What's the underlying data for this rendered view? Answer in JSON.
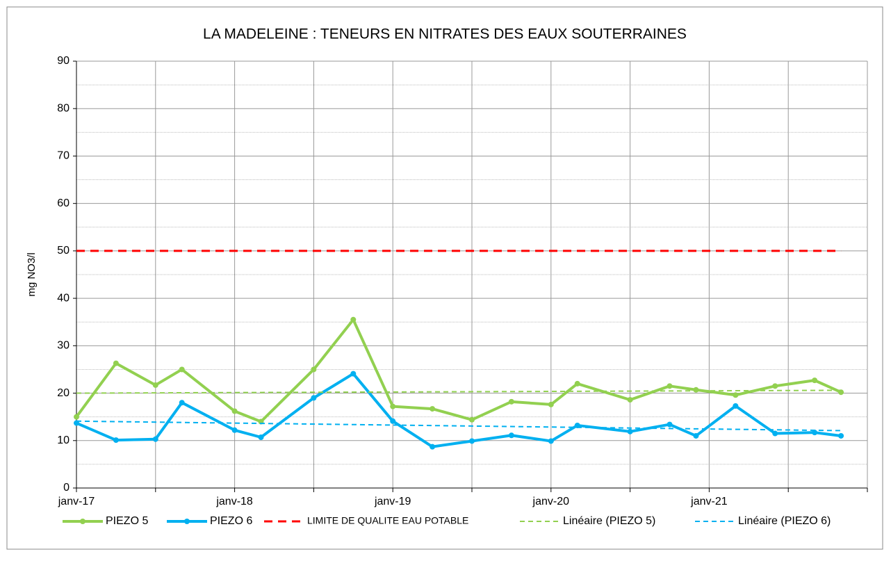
{
  "chart_data": {
    "type": "line",
    "title": "LA MADELEINE : TENEURS EN NITRATES DES EAUX SOUTERRAINES",
    "y_label": "mg NO3/l",
    "x": [
      "2017-01",
      "2017-04",
      "2017-07",
      "2017-09",
      "2018-01",
      "2018-03",
      "2018-07",
      "2018-10",
      "2019-01",
      "2019-04",
      "2019-07",
      "2019-10",
      "2020-01",
      "2020-03",
      "2020-07",
      "2020-10",
      "2020-12",
      "2021-03",
      "2021-06",
      "2021-09",
      "2021-11"
    ],
    "series": [
      {
        "name": "PIEZO 5",
        "color": "#92d050",
        "width": 4,
        "markers": true,
        "values": [
          15,
          26.3,
          21.7,
          25,
          16.2,
          14,
          25,
          35.5,
          17.2,
          16.7,
          14.4,
          18.2,
          17.6,
          22,
          18.6,
          21.5,
          20.7,
          19.6,
          21.5,
          22.7,
          20.2
        ]
      },
      {
        "name": "PIEZO 6",
        "color": "#00b0f0",
        "width": 4,
        "markers": true,
        "values": [
          13.7,
          10.1,
          10.3,
          18,
          12.2,
          10.7,
          19,
          24.1,
          14.1,
          8.7,
          9.9,
          11.1,
          9.9,
          13.2,
          11.9,
          13.4,
          11.0,
          17.3,
          11.5,
          11.7,
          11.0
        ]
      },
      {
        "name": "LIMITE DE QUALITE EAU POTABLE",
        "color": "#ff0000",
        "width": 3,
        "dash": "12 8",
        "x": [
          "2017-01",
          "2021-11"
        ],
        "values": [
          50,
          50
        ]
      },
      {
        "name": "Linéaire (PIEZO 5)",
        "color": "#92d050",
        "width": 2,
        "dash": "7 5",
        "x": [
          "2017-01",
          "2021-11"
        ],
        "values": [
          20.0,
          20.6
        ]
      },
      {
        "name": "Linéaire (PIEZO 6)",
        "color": "#00b0f0",
        "width": 2,
        "dash": "7 5",
        "x": [
          "2017-01",
          "2021-11"
        ],
        "values": [
          14.1,
          12.1
        ]
      }
    ],
    "xlim": [
      "2017-01",
      "2022-01"
    ],
    "xticks": [
      {
        "value": "2017-01",
        "label": "janv-17"
      },
      {
        "value": "2018-01",
        "label": "janv-18"
      },
      {
        "value": "2019-01",
        "label": "janv-19"
      },
      {
        "value": "2020-01",
        "label": "janv-20"
      },
      {
        "value": "2021-01",
        "label": "janv-21"
      }
    ],
    "xminor_ticks": [
      "2017-07",
      "2018-07",
      "2019-07",
      "2020-07",
      "2021-07",
      "2022-01"
    ],
    "ylim": [
      0,
      90
    ],
    "yticks": [
      0,
      10,
      20,
      30,
      40,
      50,
      60,
      70,
      80,
      90
    ],
    "yminor_ticks": [
      5,
      15,
      25,
      35,
      45,
      55,
      65,
      75,
      85
    ],
    "grid": true,
    "legend": "bottom"
  }
}
